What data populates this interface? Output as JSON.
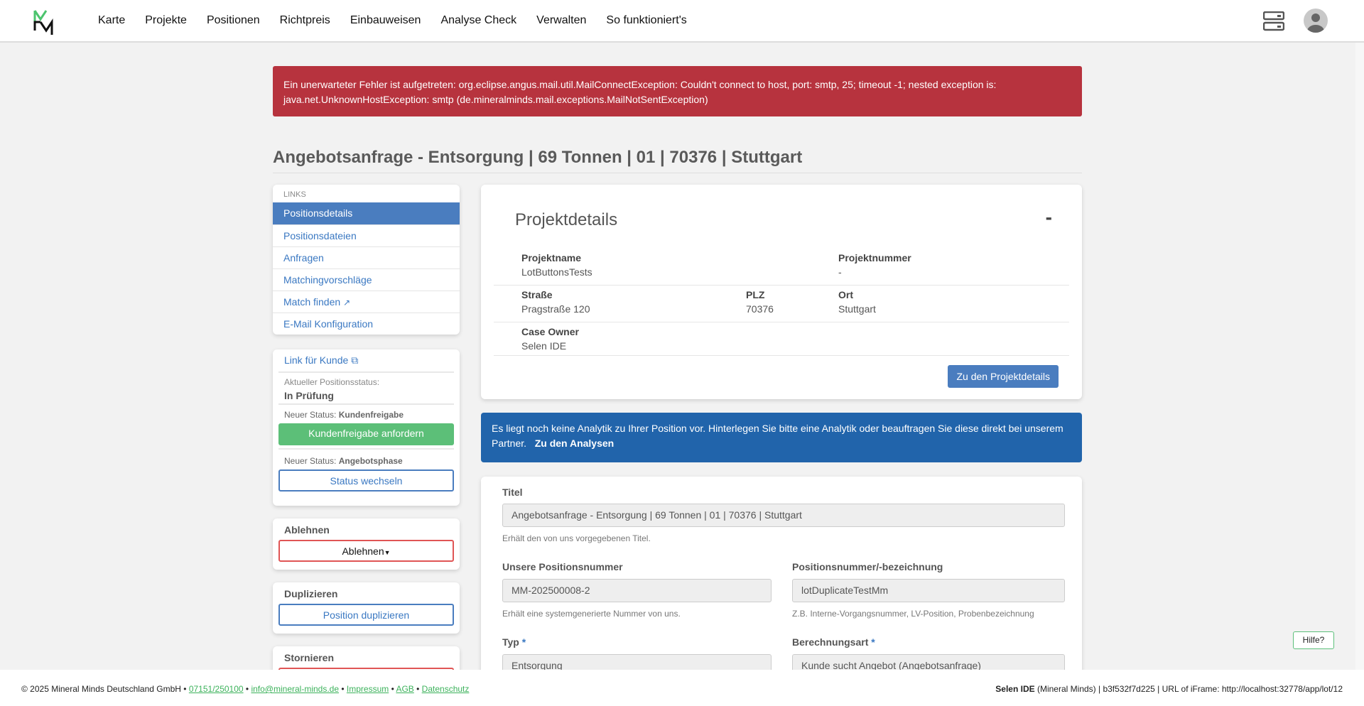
{
  "header": {
    "nav": [
      "Karte",
      "Projekte",
      "Positionen",
      "Richtpreis",
      "Einbauweisen",
      "Analyse Check",
      "Verwalten",
      "So funktioniert's"
    ]
  },
  "error": "Ein unerwarteter Fehler ist aufgetreten: org.eclipse.angus.mail.util.MailConnectException: Couldn't connect to host, port: smtp, 25; timeout -1; nested exception is: java.net.UnknownHostException: smtp (de.mineralminds.mail.exceptions.MailNotSentException)",
  "page_title": "Angebotsanfrage - Entsorgung | 69 Tonnen | 01 | 70376 | Stuttgart",
  "links": {
    "heading": "LINKS",
    "items": [
      "Positionsdetails",
      "Positionsdateien",
      "Anfragen",
      "Matchingvorschläge",
      "Match finden",
      "E-Mail Konfiguration"
    ]
  },
  "status": {
    "link_kunde": "Link für Kunde",
    "current_label": "Aktueller Positionsstatus:",
    "current": "In Prüfung",
    "new_label": "Neuer Status:",
    "new1": "Kundenfreigabe",
    "btn1": "Kundenfreigabe anfordern",
    "new2": "Angebotsphase",
    "btn2": "Status wechseln"
  },
  "reject": {
    "title": "Ablehnen",
    "button": "Ablehnen"
  },
  "duplicate": {
    "title": "Duplizieren",
    "button": "Position duplizieren"
  },
  "cancel": {
    "title": "Stornieren"
  },
  "project": {
    "title": "Projektdetails",
    "collapse": "-",
    "projektname_label": "Projektname",
    "projektname": "LotButtonsTests",
    "projektnummer_label": "Projektnummer",
    "projektnummer": "-",
    "strasse_label": "Straße",
    "strasse": "Pragstraße 120",
    "plz_label": "PLZ",
    "plz": "70376",
    "ort_label": "Ort",
    "ort": "Stuttgart",
    "owner_label": "Case Owner",
    "owner": "Selen IDE",
    "button": "Zu den Projektdetails"
  },
  "analytics": {
    "text": "Es liegt noch keine Analytik zu Ihrer Position vor. Hinterlegen Sie bitte eine Analytik oder beauftragen Sie diese direkt bei unserem Partner.",
    "link": "Zu den Analysen"
  },
  "form": {
    "titel_label": "Titel",
    "titel": "Angebotsanfrage - Entsorgung | 69 Tonnen | 01 | 70376 | Stuttgart",
    "titel_hint": "Erhält den von uns vorgegebenen Titel.",
    "unsere_label": "Unsere Positionsnummer",
    "unsere": "MM-202500008-2",
    "unsere_hint": "Erhält eine systemgenerierte Nummer von uns.",
    "posnr_label": "Positionsnummer/-bezeichnung",
    "posnr": "lotDuplicateTestMm",
    "posnr_hint": "Z.B. Interne-Vorgangsnummer, LV-Position, Probenbezeichnung",
    "typ_label": "Typ",
    "typ": "Entsorgung",
    "berechnung_label": "Berechnungsart",
    "berechnung": "Kunde sucht Angebot (Angebotsanfrage)",
    "required": "*"
  },
  "footer": {
    "copyright": "© 2025 Mineral Minds Deutschland GmbH",
    "phone": "07151/250100",
    "email": "info@mineral-minds.de",
    "impressum": "Impressum",
    "agb": "AGB",
    "datenschutz": "Datenschutz",
    "sep": " • ",
    "user": "Selen IDE",
    "right": " (Mineral Minds) | b3f532f7d225 | URL of iFrame: http://localhost:32778/app/lot/12"
  },
  "help": "Hilfe?",
  "colors": {
    "error": "#b7333e",
    "primary": "#4a7dbf",
    "success": "#5cbf78",
    "info": "#2164ab",
    "danger": "#e05555"
  }
}
